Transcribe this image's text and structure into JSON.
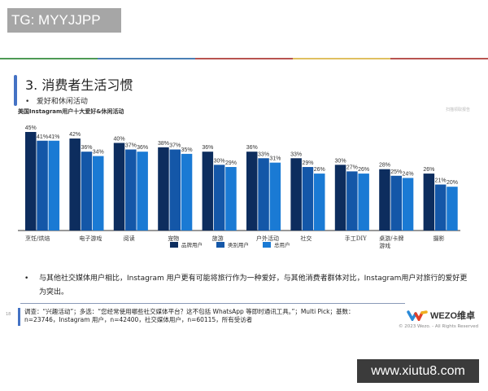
{
  "watermark_top": "TG: MYYJJPP",
  "watermark_bottom": "www.xiutu8.com",
  "rule_colors": [
    "#4e9a55",
    "#4a7fb5",
    "#b85450",
    "#e0c060",
    "#b85450"
  ],
  "slide": {
    "title": "3. 消费者生活习惯",
    "subtitle": "爱好和休闲活动",
    "corner_note": "扫描领取报告",
    "note": "与其他社交媒体用户相比，Instagram 用户更有可能将旅行作为一种爱好，与其他消费者群体对比，Instagram用户对旅行的爱好更为突出。",
    "source": "调查：“兴趣活动”；多选：“您经常使用哪些社交媒体平台？这不包括 WhatsApp 等即时通讯工具。”；Multi Pick；基数：n=23746，Instagram 用户，n=42400，社交媒体用户，n=60115，所有受访者",
    "page_number": "18",
    "logo_text": "WEZO维卓",
    "copyright": "© 2023 Wezo. - All Rights Reserved"
  },
  "chart_data": {
    "type": "bar",
    "title": "美国Instagram用户十大爱好&休闲活动",
    "categories": [
      "烹饪/烘焙",
      "电子游戏",
      "阅读",
      "宠物",
      "旅游",
      "户外活动",
      "社交",
      "手工DIY",
      "桌游/卡牌游戏",
      "摄影"
    ],
    "series": [
      {
        "name": "品牌用户",
        "color": "#0d2d5e",
        "values": [
          45,
          42,
          40,
          38,
          36,
          36,
          33,
          30,
          28,
          26
        ]
      },
      {
        "name": "类别用户",
        "color": "#1457a8",
        "values": [
          41,
          36,
          37,
          37,
          30,
          33,
          29,
          27,
          25,
          21
        ]
      },
      {
        "name": "总用户",
        "color": "#1a7ad4",
        "values": [
          41,
          34,
          36,
          35,
          29,
          31,
          26,
          26,
          24,
          20
        ]
      }
    ],
    "value_format": "percent",
    "ylim": [
      0,
      50
    ],
    "legend": "bottom",
    "grid": false
  }
}
